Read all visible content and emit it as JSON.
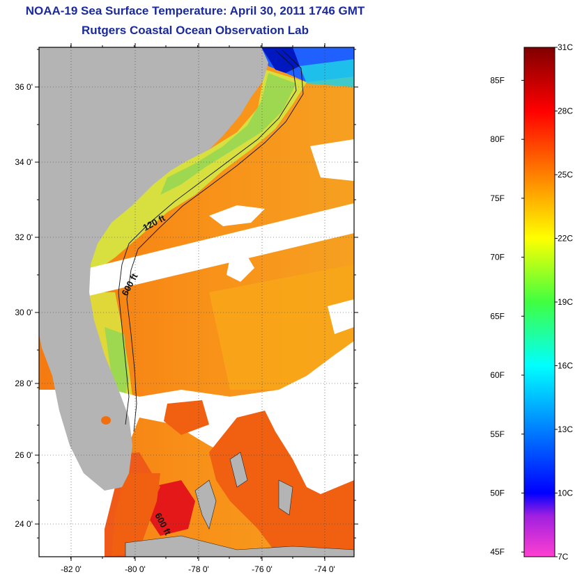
{
  "title": "NOAA-19 Sea Surface Temperature:  April 30, 2011 1746 GMT",
  "subtitle": "Rutgers Coastal Ocean Observation Lab",
  "map": {
    "lat_labels": [
      "36 0'",
      "34 0'",
      "32 0'",
      "30 0'",
      "28 0'",
      "26 0'",
      "24 0'"
    ],
    "lon_labels": [
      "-82 0'",
      "-80 0'",
      "-78 0'",
      "-76 0'",
      "-74 0'"
    ],
    "contour_labels": [
      "120 ft",
      "600 ft",
      "600 ft"
    ],
    "colors": {
      "land": "#b4b4b4",
      "cloud": "#ffffff",
      "gulf_stream": "#f07010",
      "shelf_water": "#9ed850",
      "cold_water": "#1040ff",
      "warm_core": "#e41818"
    }
  },
  "colorbar": {
    "fahrenheit_labels": [
      "85F",
      "80F",
      "75F",
      "70F",
      "65F",
      "60F",
      "55F",
      "50F",
      "45F"
    ],
    "celsius_labels": [
      "31C",
      "28C",
      "25C",
      "22C",
      "19C",
      "16C",
      "13C",
      "10C",
      "7C"
    ],
    "range_c": [
      7,
      31
    ],
    "range_f": [
      45,
      88
    ]
  }
}
